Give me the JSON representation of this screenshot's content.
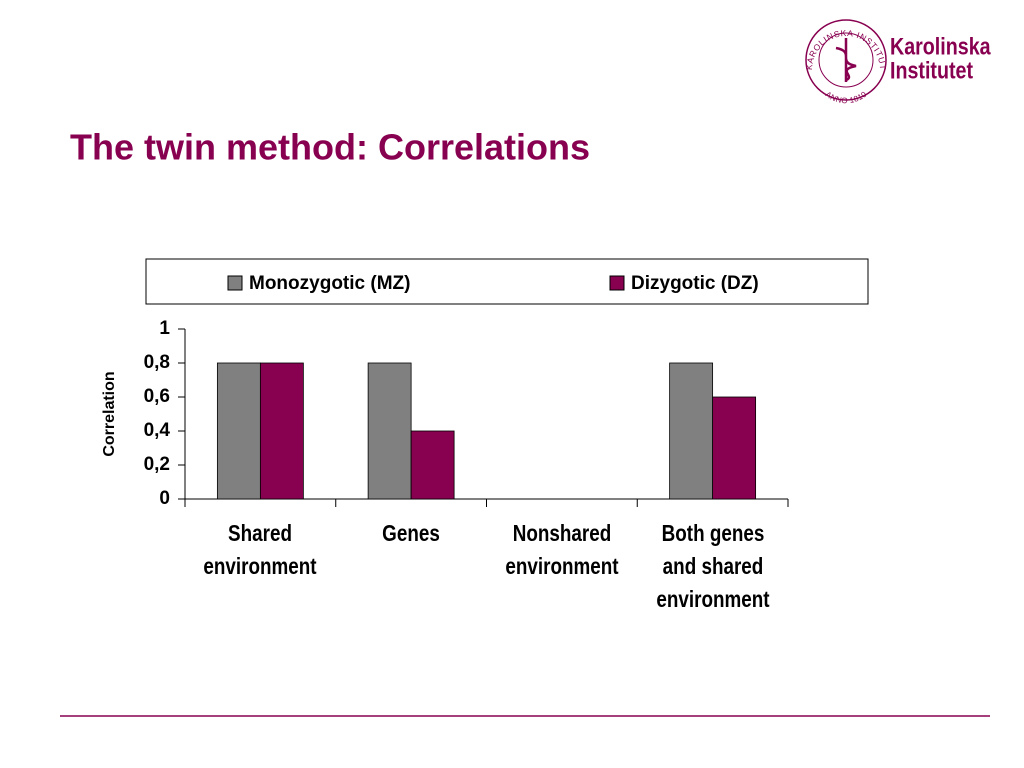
{
  "logo": {
    "name_line1": "Karolinska",
    "name_line2": "Institutet",
    "seal_text": "KAROLINSKA INSTITUTET",
    "seal_year": "ANNO 1810"
  },
  "chart_data": {
    "type": "bar",
    "title": "The twin method: Correlations",
    "y_label": "Correlation",
    "categories": [
      "Shared environment",
      "Genes",
      "Nonshared environment",
      "Both genes and shared environment"
    ],
    "series": [
      {
        "name": "Monozygotic (MZ)",
        "color": "#808080",
        "values": [
          0.8,
          0.8,
          0,
          0.8
        ]
      },
      {
        "name": "Dizygotic (DZ)",
        "color": "#880050",
        "values": [
          0.8,
          0.4,
          0,
          0.6
        ]
      }
    ],
    "ylim": [
      0,
      1
    ],
    "yticks": [
      0,
      {
        "value": 0.2,
        "label": "0,2"
      },
      {
        "value": 0.4,
        "label": "0,4"
      },
      {
        "value": 0.6,
        "label": "0,6"
      },
      {
        "value": 0.8,
        "label": "0,8"
      },
      1
    ],
    "grid": false,
    "legend": "top"
  }
}
